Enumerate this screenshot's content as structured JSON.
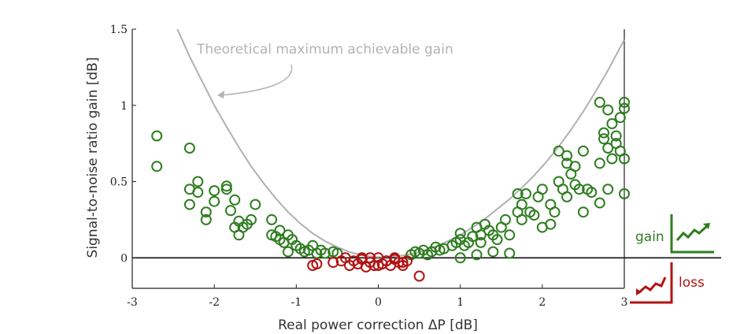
{
  "chart_data": {
    "type": "scatter",
    "xlabel": "Real power correction ΔP [dB]",
    "ylabel": "Signal-to-noise ratio gain [dB]",
    "xlim": [
      -3,
      3
    ],
    "ylim": [
      -0.2,
      1.5
    ],
    "xticks": [
      "-3",
      "-2",
      "-1",
      "0",
      "1",
      "2",
      "3"
    ],
    "xtick_values": [
      -3,
      -2,
      -1,
      0,
      1,
      2,
      3
    ],
    "yticks": [
      "0",
      "0.5",
      "1",
      "1.5"
    ],
    "ytick_values": [
      0,
      0.5,
      1,
      1.5
    ],
    "grid": false,
    "curve": {
      "label": "Theoretical maximum achievable gain",
      "color": "#b0b0b0",
      "x": [
        -2.45,
        -2.3,
        -2.15,
        -2.0,
        -1.85,
        -1.7,
        -1.55,
        -1.4,
        -1.25,
        -1.1,
        -0.95,
        -0.8,
        -0.65,
        -0.5,
        -0.35,
        -0.2,
        -0.05,
        0.0,
        0.1,
        0.25,
        0.4,
        0.55,
        0.7,
        0.85,
        1.0,
        1.15,
        1.3,
        1.45,
        1.6,
        1.75,
        1.9,
        2.05,
        2.2,
        2.35,
        2.5,
        2.65,
        2.8,
        2.95,
        3.0
      ],
      "y": [
        1.5,
        1.32,
        1.16,
        1.0,
        0.86,
        0.725,
        0.6,
        0.49,
        0.39,
        0.3,
        0.225,
        0.16,
        0.11,
        0.07,
        0.038,
        0.017,
        0.006,
        0.005,
        0.006,
        0.012,
        0.025,
        0.045,
        0.075,
        0.11,
        0.15,
        0.2,
        0.255,
        0.32,
        0.385,
        0.46,
        0.54,
        0.63,
        0.73,
        0.84,
        0.96,
        1.09,
        1.23,
        1.38,
        1.43
      ]
    },
    "series": [
      {
        "name": "gain",
        "color": "#2e7d20",
        "x": [
          -2.7,
          -2.7,
          -2.3,
          -2.3,
          -2.3,
          -2.2,
          -2.2,
          -2.1,
          -2.1,
          -2.0,
          -2.0,
          -1.85,
          -1.85,
          -1.8,
          -1.75,
          -1.75,
          -1.7,
          -1.7,
          -1.65,
          -1.6,
          -1.55,
          -1.5,
          -1.3,
          -1.3,
          -1.25,
          -1.2,
          -1.2,
          -1.15,
          -1.1,
          -1.05,
          -1.0,
          -0.95,
          -0.9,
          -0.85,
          -0.8,
          -0.75,
          -0.7,
          -0.65,
          -0.55,
          -0.5,
          -1.1,
          0.4,
          0.45,
          0.5,
          0.55,
          0.6,
          0.65,
          0.7,
          0.75,
          0.8,
          0.9,
          0.95,
          1.0,
          1.0,
          1.05,
          1.1,
          1.15,
          1.2,
          1.25,
          1.25,
          1.3,
          1.35,
          1.4,
          1.45,
          1.5,
          1.55,
          1.6,
          1.7,
          1.7,
          1.75,
          1.75,
          1.8,
          1.85,
          1.9,
          1.95,
          2.0,
          2.0,
          2.1,
          2.15,
          2.2,
          2.2,
          2.25,
          2.3,
          2.3,
          2.35,
          2.4,
          2.4,
          2.45,
          2.5,
          2.5,
          2.55,
          2.6,
          2.7,
          2.7,
          2.75,
          2.75,
          2.8,
          2.8,
          2.85,
          2.85,
          2.9,
          2.9,
          2.95,
          2.95,
          3.0,
          3.0,
          3.0,
          3.0,
          2.7,
          2.8,
          1.0,
          1.2,
          1.4,
          1.6,
          2.1,
          2.3
        ],
        "y": [
          0.8,
          0.6,
          0.72,
          0.45,
          0.35,
          0.5,
          0.43,
          0.3,
          0.25,
          0.44,
          0.37,
          0.47,
          0.45,
          0.31,
          0.38,
          0.2,
          0.24,
          0.15,
          0.2,
          0.22,
          0.25,
          0.35,
          0.25,
          0.15,
          0.14,
          0.18,
          0.12,
          0.1,
          0.15,
          0.12,
          0.08,
          0.06,
          0.04,
          0.05,
          0.08,
          0.03,
          0.05,
          0.03,
          0.04,
          0.03,
          0.04,
          0.02,
          0.04,
          0.03,
          0.05,
          0.02,
          0.04,
          0.07,
          0.05,
          0.06,
          0.08,
          0.1,
          0.16,
          0.12,
          0.08,
          0.1,
          0.14,
          0.2,
          0.15,
          0.1,
          0.22,
          0.18,
          0.15,
          0.12,
          0.2,
          0.25,
          0.15,
          0.3,
          0.42,
          0.25,
          0.35,
          0.42,
          0.3,
          0.28,
          0.4,
          0.45,
          0.2,
          0.35,
          0.3,
          0.5,
          0.7,
          0.45,
          0.62,
          0.67,
          0.55,
          0.6,
          0.48,
          0.45,
          0.7,
          0.3,
          0.45,
          0.43,
          0.36,
          0.62,
          0.82,
          0.78,
          0.97,
          0.72,
          0.88,
          0.65,
          0.75,
          0.8,
          0.92,
          0.7,
          1.02,
          0.42,
          0.98,
          0.65,
          1.02,
          0.45,
          0.0,
          0.02,
          0.04,
          0.03,
          0.22,
          0.4
        ]
      },
      {
        "name": "loss",
        "color": "#b31212",
        "x": [
          -0.8,
          -0.75,
          -0.55,
          -0.45,
          -0.35,
          -0.3,
          -0.25,
          -0.2,
          -0.15,
          -0.1,
          -0.05,
          0.0,
          0.05,
          0.1,
          0.15,
          0.2,
          0.25,
          0.3,
          0.35,
          -0.4,
          -0.2,
          0.0,
          0.2,
          0.3,
          -0.1,
          0.1,
          0.5
        ],
        "y": [
          -0.05,
          -0.04,
          -0.03,
          -0.02,
          -0.05,
          -0.02,
          -0.04,
          0.0,
          -0.06,
          -0.03,
          -0.05,
          0.0,
          -0.04,
          -0.02,
          -0.05,
          -0.01,
          -0.03,
          -0.05,
          -0.02,
          0.0,
          -0.01,
          -0.05,
          0.0,
          -0.03,
          0.0,
          -0.02,
          -0.12
        ]
      }
    ],
    "annotation": "Theoretical maximum achievable gain",
    "legend": [
      {
        "label": "gain",
        "color": "#2e7d20"
      },
      {
        "label": "loss",
        "color": "#b31212"
      }
    ]
  }
}
